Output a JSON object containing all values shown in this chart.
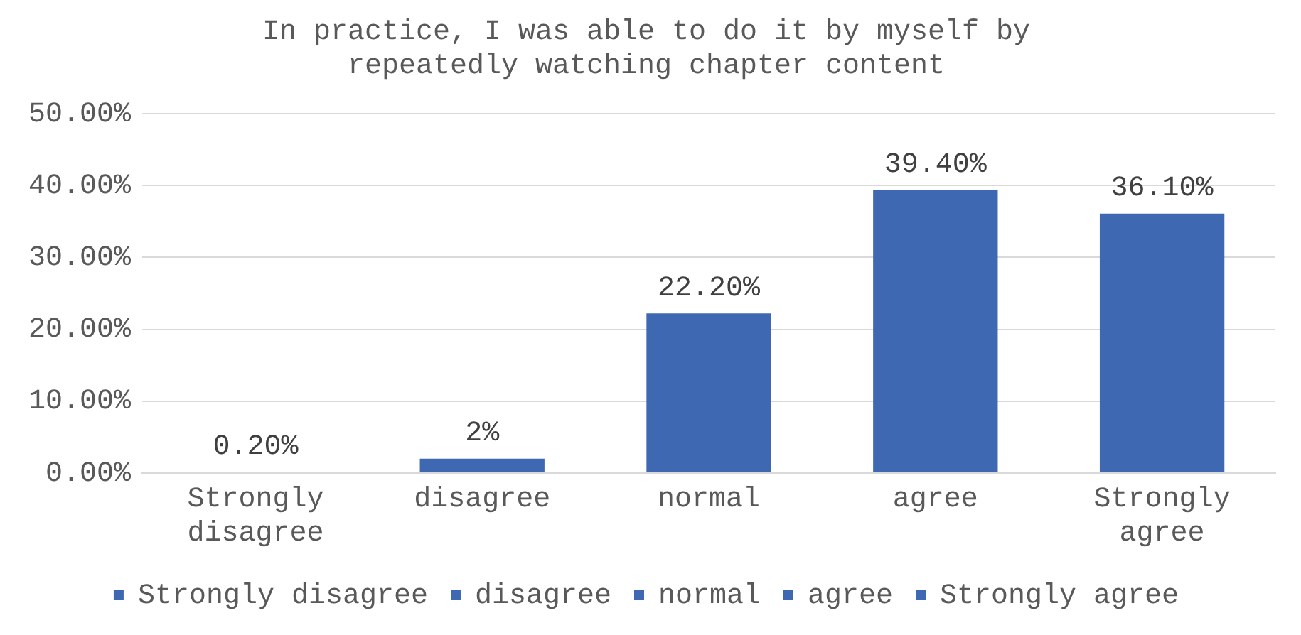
{
  "chart_data": {
    "type": "bar",
    "title": "In practice, I was able to do it by myself by repeatedly watching chapter content",
    "categories": [
      "Strongly disagree",
      "disagree",
      "normal",
      "agree",
      "Strongly agree"
    ],
    "series": [
      {
        "name": "Strongly disagree",
        "color": "#3e68b1",
        "values": [
          0.2,
          null,
          null,
          null,
          null
        ],
        "value_labels": [
          "0.20%",
          null,
          null,
          null,
          null
        ]
      },
      {
        "name": "disagree",
        "color": "#3e68b1",
        "values": [
          null,
          2,
          null,
          null,
          null
        ],
        "value_labels": [
          null,
          "2%",
          null,
          null,
          null
        ]
      },
      {
        "name": "normal",
        "color": "#3e68b1",
        "values": [
          null,
          null,
          22.2,
          null,
          null
        ],
        "value_labels": [
          null,
          null,
          "22.20%",
          null,
          null
        ]
      },
      {
        "name": "agree",
        "color": "#3e68b1",
        "values": [
          null,
          null,
          null,
          39.4,
          null
        ],
        "value_labels": [
          null,
          null,
          null,
          "39.40%",
          null
        ]
      },
      {
        "name": "Strongly agree",
        "color": "#3e68b1",
        "values": [
          null,
          null,
          null,
          null,
          36.1
        ],
        "value_labels": [
          null,
          null,
          null,
          null,
          "36.10%"
        ]
      }
    ],
    "ylim": [
      0,
      50
    ],
    "yticks": [
      {
        "value": 0,
        "label": "0.00%"
      },
      {
        "value": 10,
        "label": "10.00%"
      },
      {
        "value": 20,
        "label": "20.00%"
      },
      {
        "value": 30,
        "label": "30.00%"
      },
      {
        "value": 40,
        "label": "40.00%"
      },
      {
        "value": 50,
        "label": "50.00%"
      }
    ],
    "grid": "y",
    "legend": "bottom"
  }
}
